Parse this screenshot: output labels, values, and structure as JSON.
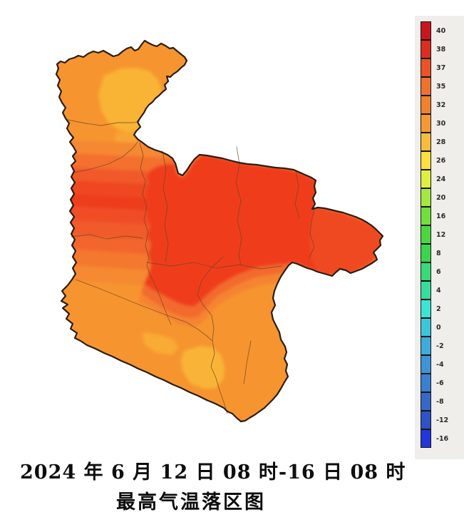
{
  "title": {
    "line1": "2024 年 6 月 12 日 08 时-16 日 08 时",
    "line2": "最高气温落区图"
  },
  "legend": {
    "entries": [
      {
        "value": "40",
        "color": "#c9151e"
      },
      {
        "value": "38",
        "color": "#db2d20"
      },
      {
        "value": "37",
        "color": "#e95326"
      },
      {
        "value": "35",
        "color": "#ee722d"
      },
      {
        "value": "32",
        "color": "#f0812f"
      },
      {
        "value": "30",
        "color": "#f49833"
      },
      {
        "value": "28",
        "color": "#f7bc3b"
      },
      {
        "value": "26",
        "color": "#fadf3e"
      },
      {
        "value": "24",
        "color": "#dfee42"
      },
      {
        "value": "20",
        "color": "#a5e83f"
      },
      {
        "value": "16",
        "color": "#72df3c"
      },
      {
        "value": "12",
        "color": "#4cd73f"
      },
      {
        "value": "8",
        "color": "#3bd44d"
      },
      {
        "value": "6",
        "color": "#38d977"
      },
      {
        "value": "4",
        "color": "#36dd9c"
      },
      {
        "value": "2",
        "color": "#3de4d5"
      },
      {
        "value": "0",
        "color": "#3cc6db"
      },
      {
        "value": "-2",
        "color": "#3fabdb"
      },
      {
        "value": "-4",
        "color": "#3e94d6"
      },
      {
        "value": "-6",
        "color": "#3a80d0"
      },
      {
        "value": "-8",
        "color": "#3469ca"
      },
      {
        "value": "-12",
        "color": "#2d53c6"
      },
      {
        "value": "-16",
        "color": "#2136db"
      }
    ]
  },
  "map": {
    "kind": "maximum-temperature shaded-contour region map",
    "colors": {
      "base": "#f6952f",
      "light_patch": "#f9b336",
      "light_column": "#f7a434",
      "band1": "#f58830",
      "band2": "#f3702d",
      "band3": "#f1582a",
      "band4": "#ee4722",
      "band5": "#ed3e1f",
      "band6": "#f04e25",
      "band7": "#f15a2a",
      "band8": "#f2662d",
      "band9": "#f4782f",
      "band10": "#f58a31",
      "core_red": "#ef3e1e",
      "lobe_red": "#ef4a24",
      "arc2": "#f26b2e",
      "arc3": "#f58431",
      "south_patch1": "#f9b438",
      "south_patch2": "#f8ab36",
      "county_line": "#6e4522",
      "outline": "#2b1d10"
    }
  }
}
